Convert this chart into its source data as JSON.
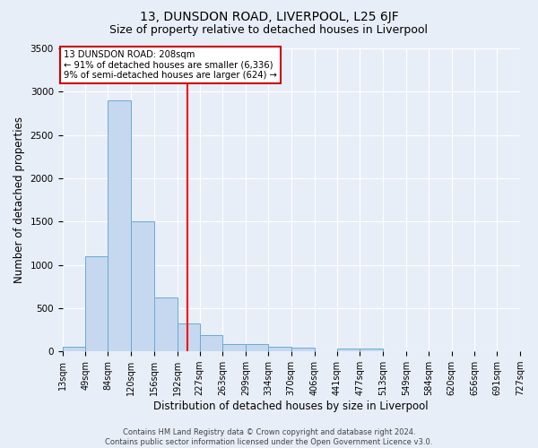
{
  "title": "13, DUNSDON ROAD, LIVERPOOL, L25 6JF",
  "subtitle": "Size of property relative to detached houses in Liverpool",
  "xlabel": "Distribution of detached houses by size in Liverpool",
  "ylabel": "Number of detached properties",
  "bin_edges": [
    13,
    49,
    84,
    120,
    156,
    192,
    227,
    263,
    299,
    334,
    370,
    406,
    441,
    477,
    513,
    549,
    584,
    620,
    656,
    691,
    727
  ],
  "bar_heights": [
    50,
    1100,
    2900,
    1500,
    625,
    325,
    190,
    85,
    85,
    50,
    40,
    0,
    35,
    30,
    0,
    0,
    0,
    0,
    0,
    0
  ],
  "bar_color": "#c5d8ef",
  "bar_edge_color": "#6aaad4",
  "red_line_x": 208,
  "ylim": [
    0,
    3500
  ],
  "yticks": [
    0,
    500,
    1000,
    1500,
    2000,
    2500,
    3000,
    3500
  ],
  "annotation_title": "13 DUNSDON ROAD: 208sqm",
  "annotation_line1": "← 91% of detached houses are smaller (6,336)",
  "annotation_line2": "9% of semi-detached houses are larger (624) →",
  "annotation_box_color": "#ffffff",
  "annotation_box_edge": "#cc0000",
  "footer_line1": "Contains HM Land Registry data © Crown copyright and database right 2024.",
  "footer_line2": "Contains public sector information licensed under the Open Government Licence v3.0.",
  "background_color": "#e8eef8",
  "grid_color": "#ffffff",
  "title_fontsize": 10,
  "subtitle_fontsize": 9,
  "tick_label_fontsize": 7,
  "ylabel_fontsize": 8.5,
  "xlabel_fontsize": 8.5,
  "footer_fontsize": 6
}
